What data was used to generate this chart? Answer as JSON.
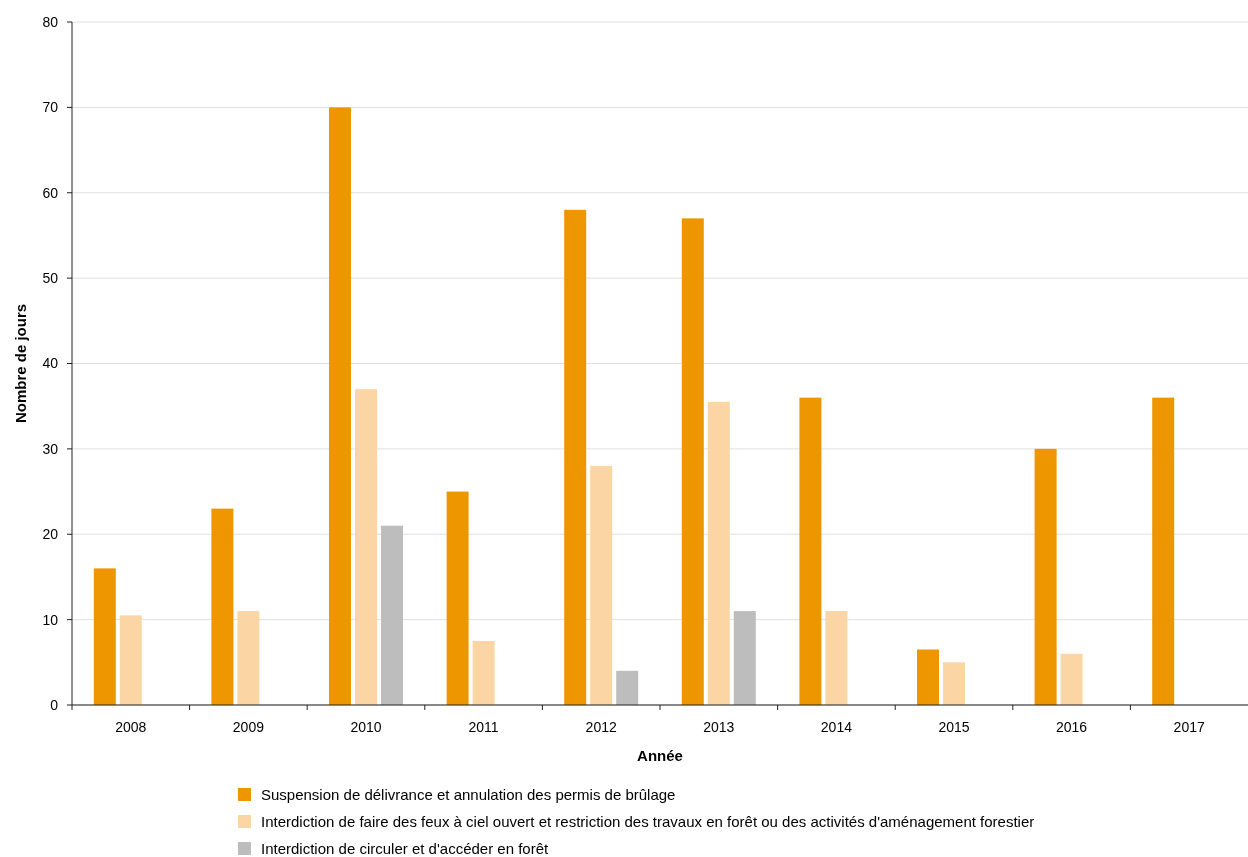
{
  "chart_data": {
    "type": "bar",
    "xlabel": "Année",
    "ylabel": "Nombre de jours",
    "categories": [
      "2008",
      "2009",
      "2010",
      "2011",
      "2012",
      "2013",
      "2014",
      "2015",
      "2016",
      "2017"
    ],
    "series": [
      {
        "name": "Suspension de délivrance et annulation des permis de brûlage",
        "color": "#ee9600",
        "values": [
          16,
          23,
          70,
          25,
          58,
          57,
          36,
          6.5,
          30,
          36
        ]
      },
      {
        "name": "Interdiction de faire des feux à ciel ouvert et restriction des travaux en forêt ou des activités d'aménagement forestier",
        "color": "#fcd5a5",
        "values": [
          10.5,
          11,
          37,
          7.5,
          28,
          35.5,
          11,
          5,
          6,
          null
        ]
      },
      {
        "name": "Interdiction de circuler et d'accéder en forêt",
        "color": "#bdbdbd",
        "values": [
          null,
          null,
          21,
          null,
          4,
          11,
          null,
          null,
          null,
          null
        ]
      }
    ],
    "ylim": [
      0,
      80
    ],
    "yticks": [
      0,
      10,
      20,
      30,
      40,
      50,
      60,
      70,
      80
    ],
    "grid": "y",
    "legend": "bottom"
  }
}
